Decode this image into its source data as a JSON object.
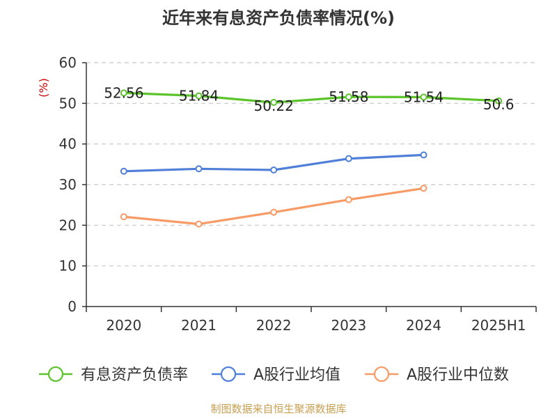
{
  "chart_data": {
    "type": "line",
    "title": "近年来有息资产负债率情况(%)",
    "ylabel": "(%)",
    "xlabel": "",
    "categories": [
      "2020",
      "2021",
      "2022",
      "2023",
      "2024",
      "2025H1"
    ],
    "ylim": [
      0,
      60
    ],
    "yticks": [
      "0",
      "10",
      "20",
      "30",
      "40",
      "50",
      "60"
    ],
    "grid": true,
    "legend_position": "bottom",
    "series": [
      {
        "name": "有息资产负债率",
        "color": "#5cc42b",
        "values": [
          52.56,
          51.84,
          50.22,
          51.58,
          51.54,
          50.6
        ],
        "labels": [
          "52.56",
          "51.84",
          "50.22",
          "51.58",
          "51.54",
          "50.6"
        ]
      },
      {
        "name": "A股行业均值",
        "color": "#4f7fd8",
        "values": [
          33.3,
          33.9,
          33.6,
          36.4,
          37.3,
          null
        ],
        "labels": []
      },
      {
        "name": "A股行业中位数",
        "color": "#f79a66",
        "values": [
          22.1,
          20.3,
          23.2,
          26.3,
          29.1,
          null
        ],
        "labels": []
      }
    ]
  },
  "source": "制图数据来自恒生聚源数据库"
}
